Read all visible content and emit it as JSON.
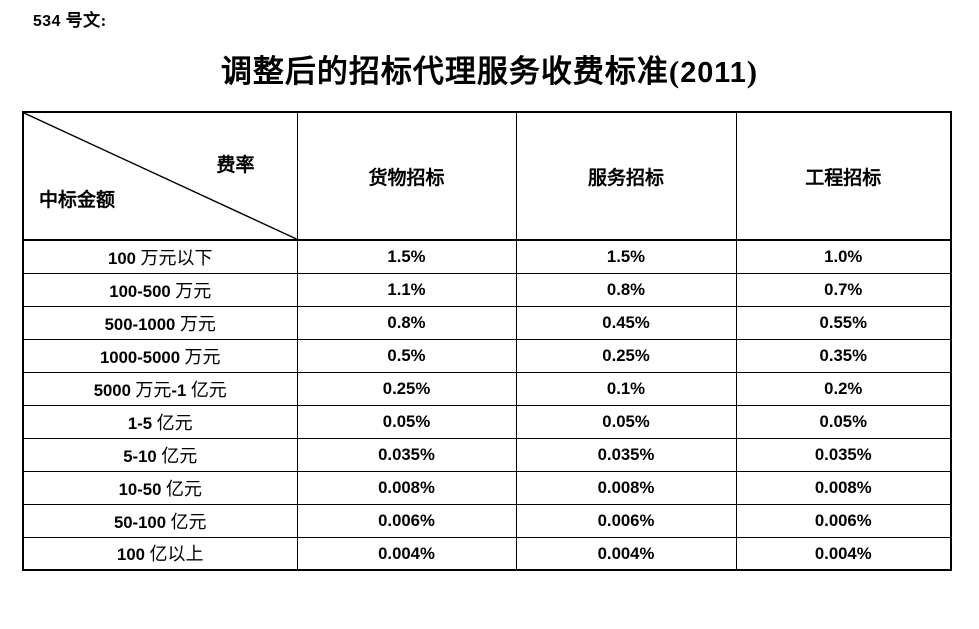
{
  "document": {
    "doc_number": "534 号文:",
    "title": "调整后的招标代理服务收费标准(2011)"
  },
  "table": {
    "corner": {
      "top_right_label": "费率",
      "bottom_left_label": "中标金额"
    },
    "column_headers": [
      "货物招标",
      "服务招标",
      "工程招标"
    ],
    "rows": [
      {
        "amount": "100 万元以下",
        "goods": "1.5%",
        "service": "1.5%",
        "engineering": "1.0%"
      },
      {
        "amount": "100-500 万元",
        "goods": "1.1%",
        "service": "0.8%",
        "engineering": "0.7%"
      },
      {
        "amount": "500-1000 万元",
        "goods": "0.8%",
        "service": "0.45%",
        "engineering": "0.55%"
      },
      {
        "amount": "1000-5000 万元",
        "goods": "0.5%",
        "service": "0.25%",
        "engineering": "0.35%"
      },
      {
        "amount": "5000 万元-1 亿元",
        "goods": "0.25%",
        "service": "0.1%",
        "engineering": "0.2%"
      },
      {
        "amount": "1-5 亿元",
        "goods": "0.05%",
        "service": "0.05%",
        "engineering": "0.05%"
      },
      {
        "amount": "5-10 亿元",
        "goods": "0.035%",
        "service": "0.035%",
        "engineering": "0.035%"
      },
      {
        "amount": "10-50 亿元",
        "goods": "0.008%",
        "service": "0.008%",
        "engineering": "0.008%"
      },
      {
        "amount": "50-100 亿元",
        "goods": "0.006%",
        "service": "0.006%",
        "engineering": "0.006%"
      },
      {
        "amount": "100 亿以上",
        "goods": "0.004%",
        "service": "0.004%",
        "engineering": "0.004%"
      }
    ]
  },
  "colors": {
    "text": "#000000",
    "border": "#000000",
    "background": "#ffffff"
  }
}
